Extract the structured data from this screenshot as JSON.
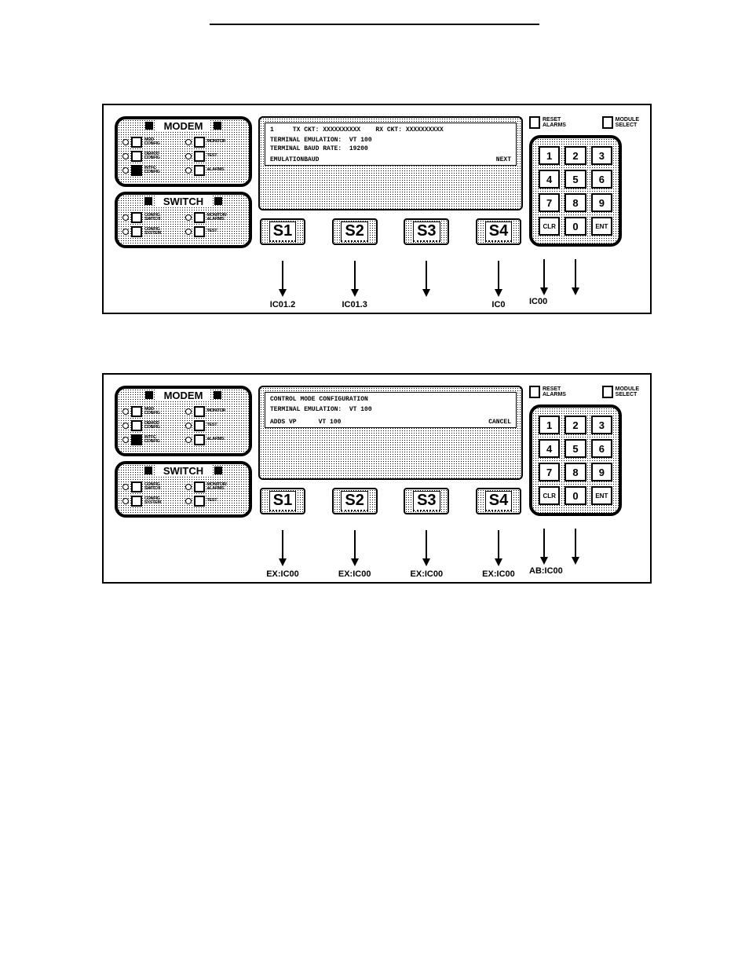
{
  "panel1": {
    "modem": {
      "title": "MODEM",
      "buttons": [
        {
          "label": "MOD\nCONFIG",
          "filled": false
        },
        {
          "label": "MONITOR",
          "filled": false
        },
        {
          "label": "DEMOD\nCONFIG",
          "filled": false
        },
        {
          "label": "TEST",
          "filled": false
        },
        {
          "label": "INTFC\nCONFIG",
          "filled": true
        },
        {
          "label": "ALARMS",
          "filled": false
        }
      ]
    },
    "switch": {
      "title": "SWITCH",
      "buttons": [
        {
          "label": "CONFIG\nSWITCH",
          "filled": false
        },
        {
          "label": "MONITOR/\nALARMS",
          "filled": false
        },
        {
          "label": "CONFIG\nSYSTEM",
          "filled": false
        },
        {
          "label": "TEST",
          "filled": false
        }
      ]
    },
    "lcd": {
      "line1": "1     TX CKT: XXXXXXXXXX    RX CKT: XXXXXXXXXX",
      "line2": "",
      "line3": "TERMINAL EMULATION:  VT 100",
      "line4": "TERMINAL BAUD RATE:  19200",
      "soft": [
        "EMULATION",
        "BAUD",
        "",
        "NEXT"
      ]
    },
    "softkeys": [
      "S1",
      "S2",
      "S3",
      "S4"
    ],
    "arrows": [
      true,
      true,
      true,
      true
    ],
    "dests": [
      "IC01.2",
      "IC01.3",
      "",
      "IC0"
    ],
    "right": {
      "reset": "RESET\nALARMS",
      "module": "MODULE\nSELECT",
      "keys": [
        "1",
        "2",
        "3",
        "4",
        "5",
        "6",
        "7",
        "8",
        "9",
        "CLR",
        "0",
        "ENT"
      ],
      "arrow1": true,
      "arrow2": true,
      "dest": "IC00"
    }
  },
  "panel2": {
    "modem": {
      "title": "MODEM",
      "buttons": [
        {
          "label": "MOD\nCONFIG",
          "filled": false
        },
        {
          "label": "MONITOR",
          "filled": false
        },
        {
          "label": "DEMOD\nCONFIG",
          "filled": false
        },
        {
          "label": "TEST",
          "filled": false
        },
        {
          "label": "INTFC\nCONFIG",
          "filled": true
        },
        {
          "label": "ALARMS",
          "filled": false
        }
      ]
    },
    "switch": {
      "title": "SWITCH",
      "buttons": [
        {
          "label": "CONFIG\nSWITCH",
          "filled": false
        },
        {
          "label": "MONITOR/\nALARMS",
          "filled": false
        },
        {
          "label": "CONFIG\nSYSTEM",
          "filled": false
        },
        {
          "label": "TEST",
          "filled": false
        }
      ]
    },
    "lcd": {
      "line1": "CONTROL MODE CONFIGURATION",
      "line2": "",
      "line3": "TERMINAL EMULATION:  VT 100",
      "line4": "",
      "soft": [
        "ADDS VP",
        "VT 100",
        "",
        "CANCEL"
      ]
    },
    "softkeys": [
      "S1",
      "S2",
      "S3",
      "S4"
    ],
    "arrows": [
      true,
      true,
      true,
      true
    ],
    "dests": [
      "EX:IC00",
      "EX:IC00",
      "EX:IC00",
      "EX:IC00"
    ],
    "right": {
      "reset": "RESET\nALARMS",
      "module": "MODULE\nSELECT",
      "keys": [
        "1",
        "2",
        "3",
        "4",
        "5",
        "6",
        "7",
        "8",
        "9",
        "CLR",
        "0",
        "ENT"
      ],
      "arrow1": true,
      "arrow2": true,
      "dest": "AB:IC00"
    }
  }
}
